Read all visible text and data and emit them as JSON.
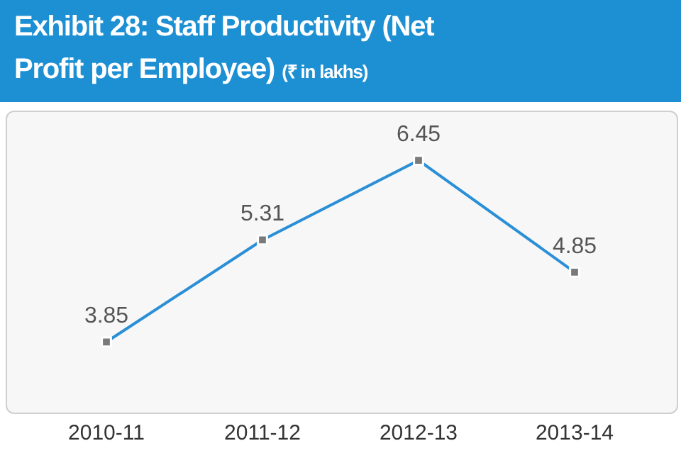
{
  "chart_data": {
    "type": "line",
    "title": "Exhibit 28: Staff Productivity (Net Profit per Employee)",
    "subtitle": "(₹ in lakhs)",
    "categories": [
      "2010-11",
      "2011-12",
      "2012-13",
      "2013-14"
    ],
    "series": [
      {
        "color": "#2a8fd6",
        "values": [
          3.85,
          5.31,
          6.45,
          4.85
        ]
      }
    ],
    "data_labels": true,
    "marker": "square",
    "line_style": "solid",
    "grid": false,
    "legend": false,
    "tick_labels": "x"
  }
}
